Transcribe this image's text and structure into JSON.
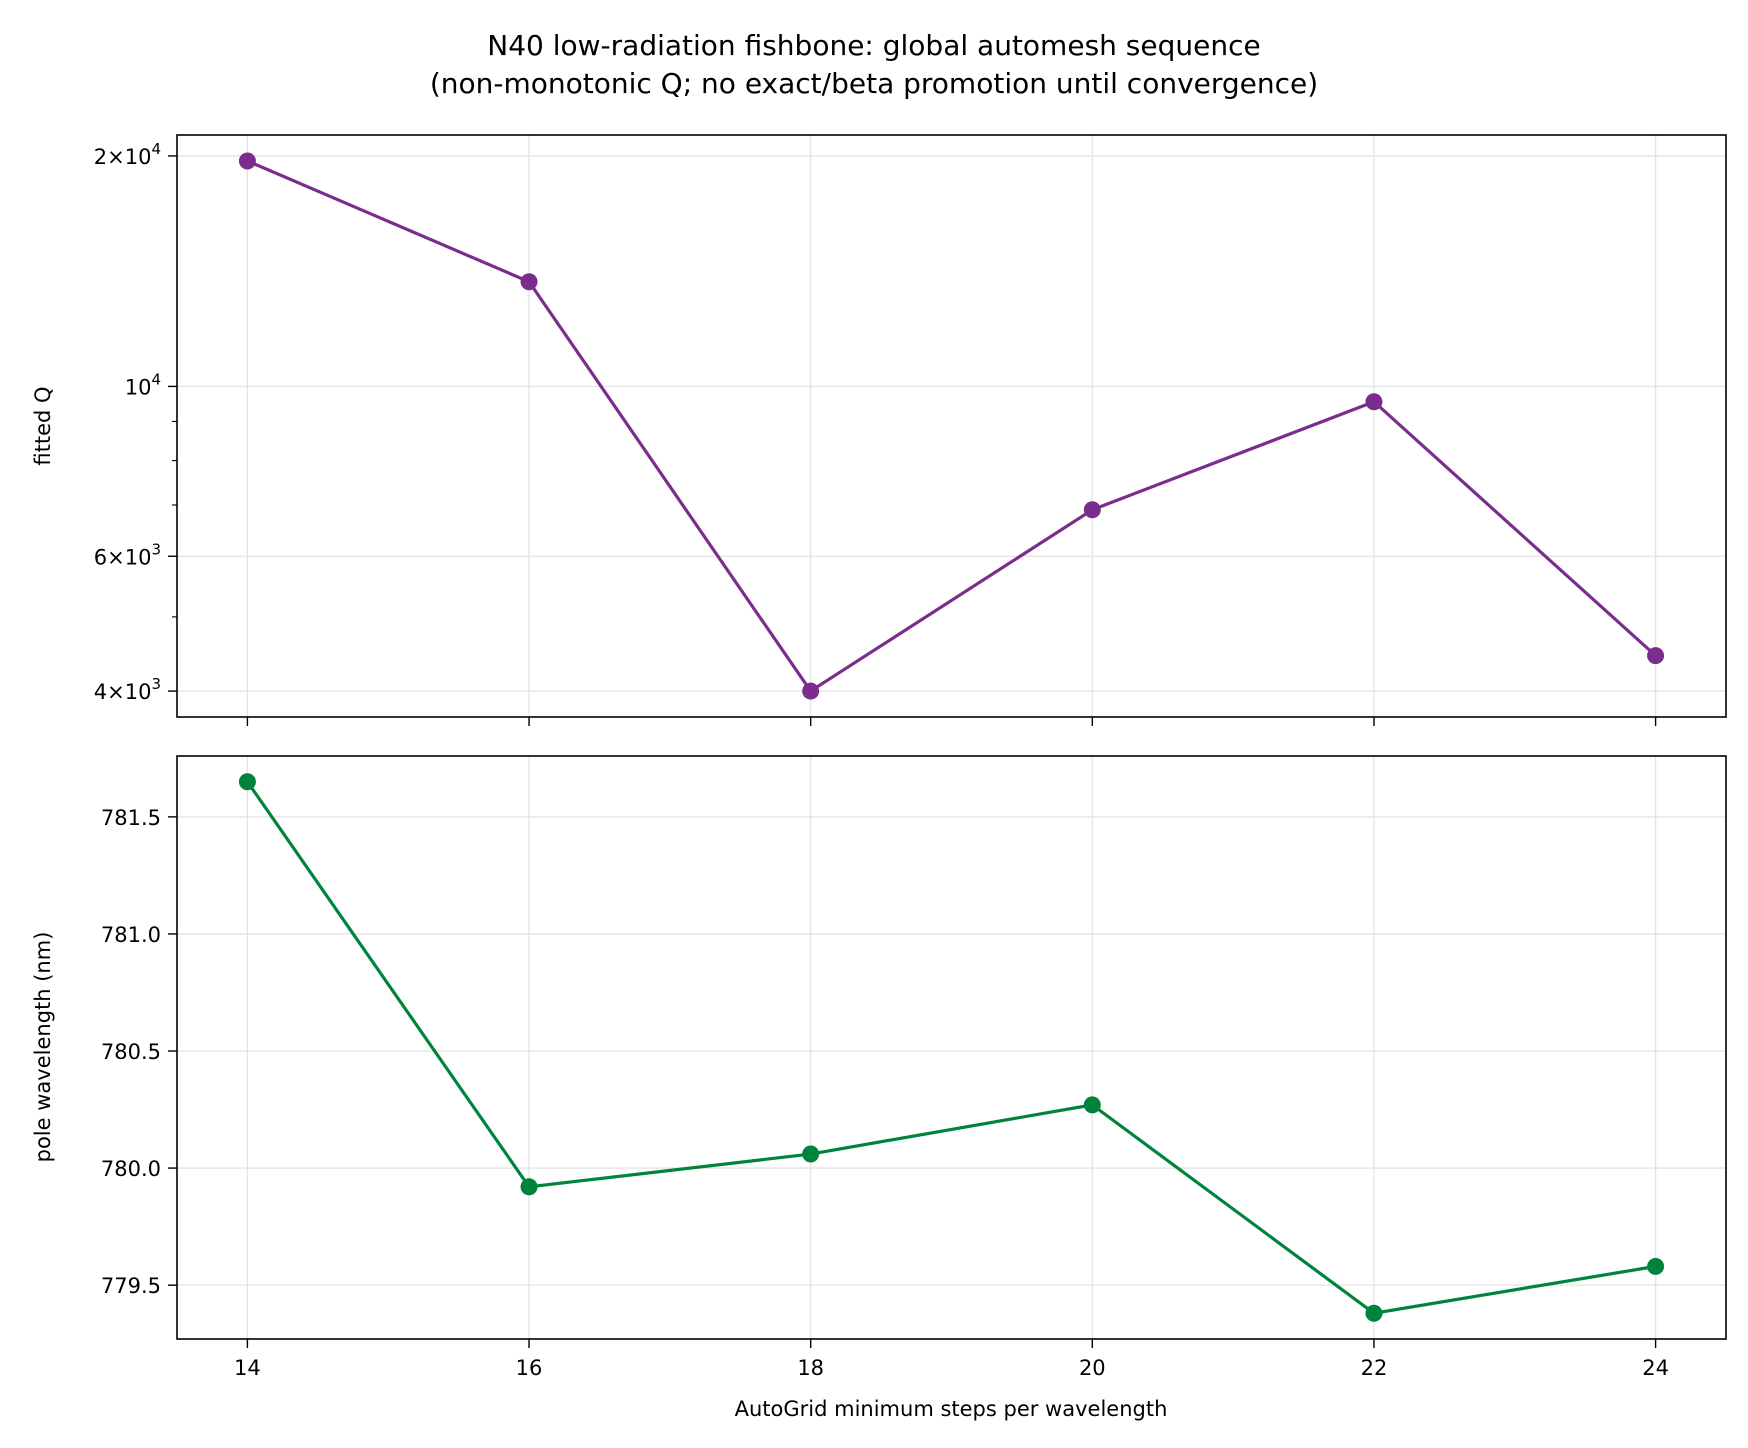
{
  "figure": {
    "title_line1": "N40 low-radiation fishbone: global automesh sequence",
    "title_line2": "(non-monotonic Q; no exact/beta promotion until convergence)"
  },
  "chart_data": [
    {
      "type": "line",
      "title": "",
      "xlabel": "",
      "ylabel": "fitted Q",
      "yscale": "log",
      "x": [
        14,
        16,
        18,
        20,
        22,
        24
      ],
      "series": [
        {
          "name": "",
          "values": [
            19700,
            13700,
            4000,
            6900,
            9550,
            4450
          ],
          "color": "#7b2d8e"
        }
      ],
      "xlim": [
        13.5,
        24.5
      ],
      "ylim": [
        3700,
        21300
      ],
      "yticks": [
        {
          "value": 20000,
          "mant": "2",
          "exp": "4"
        },
        {
          "value": 10000,
          "mant": "",
          "exp": "4"
        },
        {
          "value": 6000,
          "mant": "6",
          "exp": "3"
        },
        {
          "value": 4000,
          "mant": "4",
          "exp": "3"
        }
      ],
      "minor_yticks": [
        5000,
        7000,
        8000,
        9000
      ],
      "grid": true
    },
    {
      "type": "line",
      "title": "",
      "xlabel": "AutoGrid minimum steps per wavelength",
      "ylabel": "pole wavelength (nm)",
      "yscale": "linear",
      "x": [
        14,
        16,
        18,
        20,
        22,
        24
      ],
      "series": [
        {
          "name": "",
          "values": [
            781.65,
            779.92,
            780.06,
            780.27,
            779.38,
            779.58
          ],
          "color": "#00843d"
        }
      ],
      "xlim": [
        13.5,
        24.5
      ],
      "ylim": [
        779.27,
        781.76
      ],
      "xticks": [
        "14",
        "16",
        "18",
        "20",
        "22",
        "24"
      ],
      "yticks": [
        "779.5",
        "780.0",
        "780.5",
        "781.0",
        "781.5"
      ],
      "grid": true
    }
  ]
}
